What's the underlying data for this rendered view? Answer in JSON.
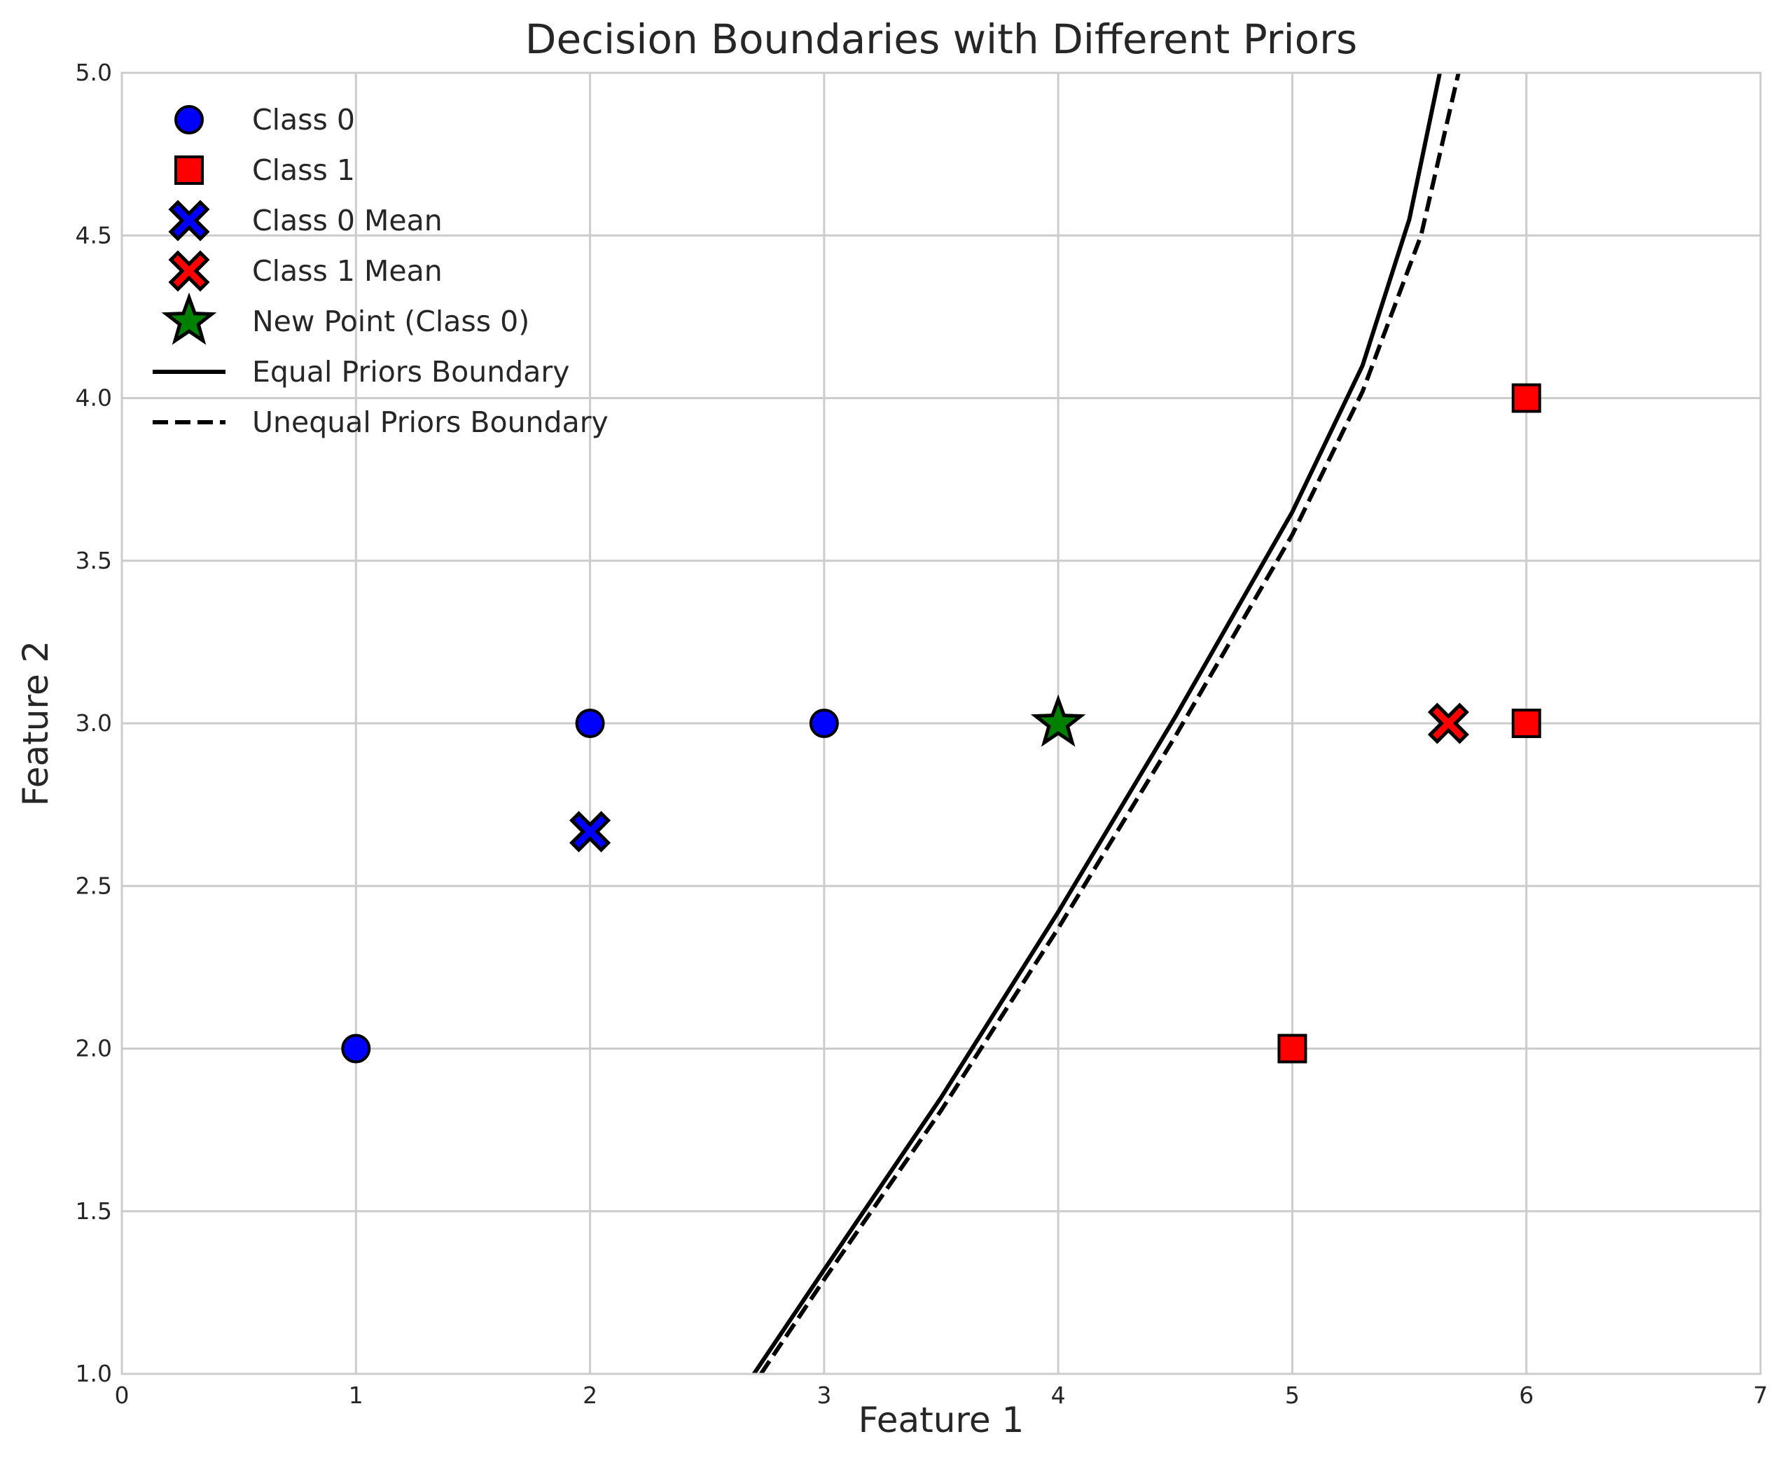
{
  "chart_data": {
    "type": "scatter",
    "title": "Decision Boundaries with Different Priors",
    "xlabel": "Feature 1",
    "ylabel": "Feature 2",
    "xlim": [
      0,
      7
    ],
    "ylim": [
      1.0,
      5.0
    ],
    "xticks": [
      "0",
      "1",
      "2",
      "3",
      "4",
      "5",
      "6",
      "7"
    ],
    "yticks": [
      "1.0",
      "1.5",
      "2.0",
      "2.5",
      "3.0",
      "3.5",
      "4.0",
      "4.5",
      "5.0"
    ],
    "grid": true,
    "legend_position": "upper-left",
    "series": [
      {
        "name": "Class 0",
        "marker": "circle",
        "color": "#0000ff",
        "points": [
          [
            1,
            2
          ],
          [
            2,
            3
          ],
          [
            3,
            3
          ]
        ]
      },
      {
        "name": "Class 1",
        "marker": "square",
        "color": "#ff0000",
        "points": [
          [
            5,
            2
          ],
          [
            6,
            3
          ],
          [
            6,
            4
          ]
        ]
      },
      {
        "name": "Class 0 Mean",
        "marker": "x-filled",
        "color": "#0000ff",
        "points": [
          [
            2.0,
            2.667
          ]
        ]
      },
      {
        "name": "Class 1 Mean",
        "marker": "x-filled",
        "color": "#ff0000",
        "points": [
          [
            5.667,
            3.0
          ]
        ]
      },
      {
        "name": "New Point (Class 0)",
        "marker": "star",
        "color": "#008000",
        "points": [
          [
            4,
            3
          ]
        ]
      },
      {
        "name": "Equal Priors Boundary",
        "line": "solid",
        "color": "#000000",
        "points": [
          [
            2.7,
            1.0
          ],
          [
            3.0,
            1.32
          ],
          [
            3.5,
            1.85
          ],
          [
            4.0,
            2.42
          ],
          [
            4.5,
            3.02
          ],
          [
            5.0,
            3.65
          ],
          [
            5.3,
            4.1
          ],
          [
            5.5,
            4.55
          ],
          [
            5.63,
            5.0
          ]
        ]
      },
      {
        "name": "Unequal Priors Boundary",
        "line": "dashed",
        "color": "#000000",
        "points": [
          [
            2.73,
            1.0
          ],
          [
            3.0,
            1.29
          ],
          [
            3.5,
            1.81
          ],
          [
            4.0,
            2.37
          ],
          [
            4.5,
            2.96
          ],
          [
            5.0,
            3.58
          ],
          [
            5.3,
            4.02
          ],
          [
            5.55,
            4.5
          ],
          [
            5.71,
            5.0
          ]
        ]
      }
    ]
  }
}
